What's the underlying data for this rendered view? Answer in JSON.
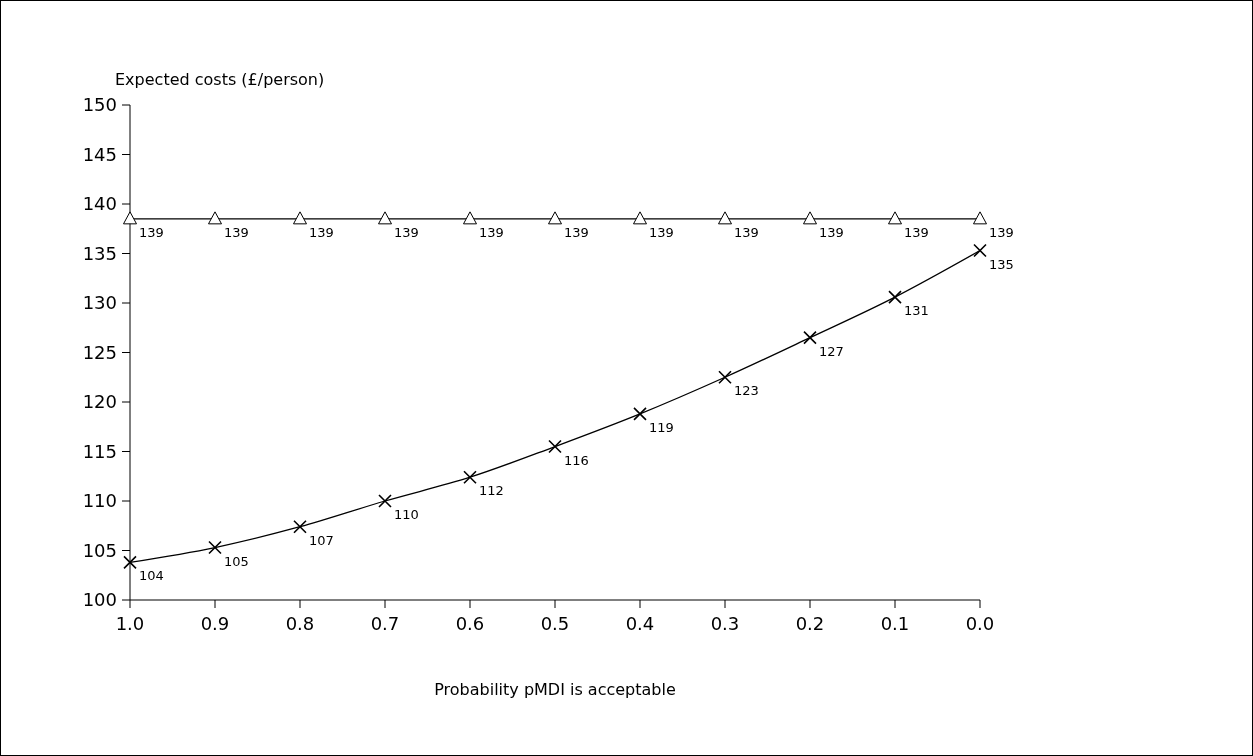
{
  "chart_data": {
    "type": "line",
    "xlabel": "Probability pMDI is acceptable",
    "ylabel": "Expected costs (£/person)",
    "x": [
      1.0,
      0.9,
      0.8,
      0.7,
      0.6,
      0.5,
      0.4,
      0.3,
      0.2,
      0.1,
      0.0
    ],
    "xlim": [
      1.0,
      0.0
    ],
    "xticks": [
      {
        "value": 1.0,
        "label": "1.0"
      },
      {
        "value": 0.9,
        "label": "0.9"
      },
      {
        "value": 0.8,
        "label": "0.8"
      },
      {
        "value": 0.7,
        "label": "0.7"
      },
      {
        "value": 0.6,
        "label": "0.6"
      },
      {
        "value": 0.5,
        "label": "0.5"
      },
      {
        "value": 0.4,
        "label": "0.4"
      },
      {
        "value": 0.3,
        "label": "0.3"
      },
      {
        "value": 0.2,
        "label": "0.2"
      },
      {
        "value": 0.1,
        "label": "0.1"
      },
      {
        "value": 0.0,
        "label": "0.0"
      }
    ],
    "ylim": [
      100,
      150
    ],
    "yticks": [
      100,
      105,
      110,
      115,
      120,
      125,
      130,
      135,
      140,
      145,
      150
    ],
    "grid": false,
    "line_style": "solid",
    "series": [
      {
        "color": "#000000",
        "marker": "triangle",
        "values": [
          138.5,
          138.5,
          138.5,
          138.5,
          138.5,
          138.5,
          138.5,
          138.5,
          138.5,
          138.5,
          138.5
        ],
        "value_labels": [
          "139",
          "139",
          "139",
          "139",
          "139",
          "139",
          "139",
          "139",
          "139",
          "139",
          "139"
        ]
      },
      {
        "color": "#000000",
        "marker": "cross",
        "values": [
          103.8,
          105.3,
          107.4,
          110.0,
          112.4,
          115.5,
          118.8,
          122.5,
          126.5,
          130.6,
          135.3
        ],
        "value_labels": [
          "104",
          "105",
          "107",
          "110",
          "112",
          "116",
          "119",
          "123",
          "127",
          "131",
          "135"
        ]
      }
    ]
  }
}
